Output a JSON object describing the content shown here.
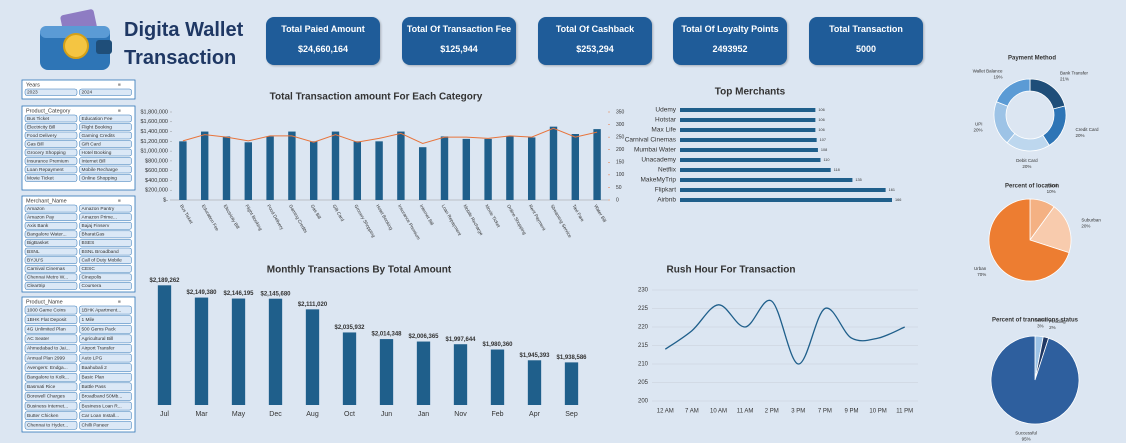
{
  "header": {
    "title": "Digita Wallet Transaction"
  },
  "kpis": [
    {
      "label": "Total Paied Amount",
      "value": "$24,660,164"
    },
    {
      "label": "Total Of Transaction Fee",
      "value": "$125,944"
    },
    {
      "label": "Total Of Cashback",
      "value": "$253,294"
    },
    {
      "label": "Total Of Loyalty Points",
      "value": "2493952"
    },
    {
      "label": "Total Transaction",
      "value": "5000"
    }
  ],
  "slicers": [
    {
      "title": "Years",
      "items": [
        "2023",
        "2024"
      ]
    },
    {
      "title": "Product_Category",
      "items": [
        "Bus Ticket",
        "Education Fee",
        "Electricity Bill",
        "Flight Booking",
        "Food Delivery",
        "Gaming Credits",
        "Gas Bill",
        "Gift Card",
        "Grocery Shopping",
        "Hotel Booking",
        "Insurance Premium",
        "Internet Bill",
        "Loan Repayment",
        "Mobile Recharge",
        "Movie Ticket",
        "Online Shopping"
      ]
    },
    {
      "title": "Merchant_Name",
      "items": [
        "Amazon",
        "Amazon Pantry",
        "Amazon Pay",
        "Amazon Prime...",
        "Axis Bank",
        "Bajaj Finserv",
        "Bangalore Water...",
        "BharatGas",
        "BigBasket",
        "BSES",
        "BSNL",
        "BSNL Broadband",
        "BYJU'S",
        "Call of Duty Mobile",
        "Carnival Cinemas",
        "CESC",
        "Chennai Metro W...",
        "Cinepolis",
        "Cleartrip",
        "Coursera"
      ]
    },
    {
      "title": "Product_Name",
      "items": [
        "1000 Game Coins",
        "1BHK Apartment...",
        "1BHK Flat Deposit",
        "1 Mile",
        "4G Unlimited Plan",
        "500 Gems Pack",
        "AC Seater",
        "Agricultural Bill",
        "Ahmedabad to Jai...",
        "Airport Transfer",
        "Annual Plan 2999",
        "Auto LPG",
        "Avengers: Endga...",
        "Baahubali 2",
        "Bangalore to Kolk...",
        "Basic Plan",
        "Basmati Rice",
        "Battle Pass",
        "Borewell Charges",
        "Broadband 50Mb...",
        "Business Internet...",
        "Business Loan R...",
        "Butter Chicken",
        "Car Loan Install...",
        "Chennai to Hyder...",
        "Chilli Paneer"
      ]
    }
  ],
  "chart_data": [
    {
      "type": "combo",
      "title": "Total Transaction amount For Each Category",
      "categories": [
        "Bus Ticket",
        "Education Fee",
        "Electricity Bill",
        "Flight Booking",
        "Food Delivery",
        "Gaming Credits",
        "Gas Bill",
        "Gift Card",
        "Grocery Shopping",
        "Hotel Booking",
        "Insurance Premium",
        "Internet Bill",
        "Loan Repayment",
        "Mobile Recharge",
        "Movie Ticket",
        "Online Shopping",
        "Rent Payment",
        "Streaming Service",
        "Taxi Fare",
        "Water Bill"
      ],
      "series": [
        {
          "type": "bar",
          "color": "#1f5f8b",
          "values": [
            1200000,
            1400000,
            1300000,
            1180000,
            1300000,
            1400000,
            1200000,
            1400000,
            1200000,
            1200000,
            1400000,
            1080000,
            1300000,
            1250000,
            1250000,
            1300000,
            1280000,
            1500000,
            1350000,
            1450000
          ]
        },
        {
          "type": "line",
          "color": "#e8743b",
          "axis": "y2",
          "values": [
            235,
            260,
            250,
            235,
            255,
            255,
            230,
            260,
            230,
            245,
            265,
            225,
            250,
            250,
            245,
            255,
            250,
            285,
            250,
            270
          ]
        }
      ],
      "ylim": [
        0,
        1800000
      ],
      "yticks": [
        {
          "value": 0,
          "label": "$-"
        },
        {
          "value": 200000,
          "label": "$200,000"
        },
        {
          "value": 400000,
          "label": "$400,000"
        },
        {
          "value": 600000,
          "label": "$600,000"
        },
        {
          "value": 800000,
          "label": "$800,000"
        },
        {
          "value": 1000000,
          "label": "$1,000,000"
        },
        {
          "value": 1200000,
          "label": "$1,200,000"
        },
        {
          "value": 1400000,
          "label": "$1,400,000"
        },
        {
          "value": 1600000,
          "label": "$1,600,000"
        },
        {
          "value": 1800000,
          "label": "$1,800,000"
        }
      ],
      "y2lim": [
        0,
        350
      ],
      "y2ticks": [
        0,
        50,
        100,
        150,
        200,
        250,
        300,
        350
      ]
    },
    {
      "type": "hbar",
      "title": "Top Merchants",
      "categories": [
        "Udemy",
        "Hotstar",
        "Max Life",
        "Carnival Cinemas",
        "Mumbai Water",
        "Unacademy",
        "Netflix",
        "MakeMyTrip",
        "Flipkart",
        "Airbnb"
      ],
      "values": [
        106,
        106,
        106,
        107,
        108,
        110,
        118,
        135,
        161,
        166
      ],
      "color": "#1f5f8b"
    },
    {
      "type": "bar",
      "title": "Monthly Transactions By  Total Amount",
      "categories": [
        "Jul",
        "Mar",
        "May",
        "Dec",
        "Aug",
        "Oct",
        "Jun",
        "Jan",
        "Nov",
        "Feb",
        "Apr",
        "Sep"
      ],
      "values": [
        2189262,
        2149380,
        2146195,
        2145680,
        2111020,
        2035932,
        2014348,
        2006365,
        1997644,
        1980360,
        1945393,
        1938586
      ],
      "value_labels": [
        "$2,189,262",
        "$2,149,380",
        "$2,146,195",
        "$2,145,680",
        "$2,111,020",
        "$2,035,932",
        "$2,014,348",
        "$2,006,365",
        "$1,997,644",
        "$1,980,360",
        "$1,945,393",
        "$1,938,586"
      ],
      "color": "#1f5f8b",
      "ylim": [
        1800000,
        2200000
      ]
    },
    {
      "type": "line",
      "title": "Rush Hour For Transaction",
      "categories": [
        "12 AM",
        "7 AM",
        "10 AM",
        "11 AM",
        "2 PM",
        "3 PM",
        "7 PM",
        "9 PM",
        "10 PM",
        "11 PM"
      ],
      "values": [
        214,
        219,
        226,
        220,
        227,
        210,
        225,
        217,
        217,
        220
      ],
      "color": "#1f5f8b",
      "smooth": true,
      "grid": true,
      "ylim": [
        200,
        230
      ],
      "yticks": [
        200,
        205,
        210,
        215,
        220,
        225,
        230
      ]
    },
    {
      "type": "donut",
      "title": "Payment Method",
      "categories": [
        "Bank Transfer",
        "Credit Card",
        "Debit Card",
        "UPI",
        "Wallet Balance"
      ],
      "values": [
        21,
        20,
        20,
        20,
        19
      ],
      "value_labels": [
        "21%",
        "20%",
        "20%",
        "20%",
        "19%"
      ],
      "colors": [
        "#1f4e79",
        "#2e75b6",
        "#bdd7ee",
        "#9dc3e6",
        "#5b9bd5"
      ]
    },
    {
      "type": "pie",
      "title": "Percent of location",
      "categories": [
        "Rural",
        "Suburban",
        "Urban"
      ],
      "values": [
        10,
        20,
        70
      ],
      "value_labels": [
        "10%",
        "20%",
        "70%"
      ],
      "colors": [
        "#f4b183",
        "#f8cbad",
        "#ed7d31"
      ]
    },
    {
      "type": "pie",
      "title": "Percent of transactions status",
      "categories": [
        "Failed",
        "Pending",
        "Successful"
      ],
      "values": [
        3,
        2,
        95
      ],
      "value_labels": [
        "3%",
        "2%",
        "95%"
      ],
      "colors": [
        "#9dc3e6",
        "#1f3864",
        "#2e5f9e"
      ]
    }
  ]
}
